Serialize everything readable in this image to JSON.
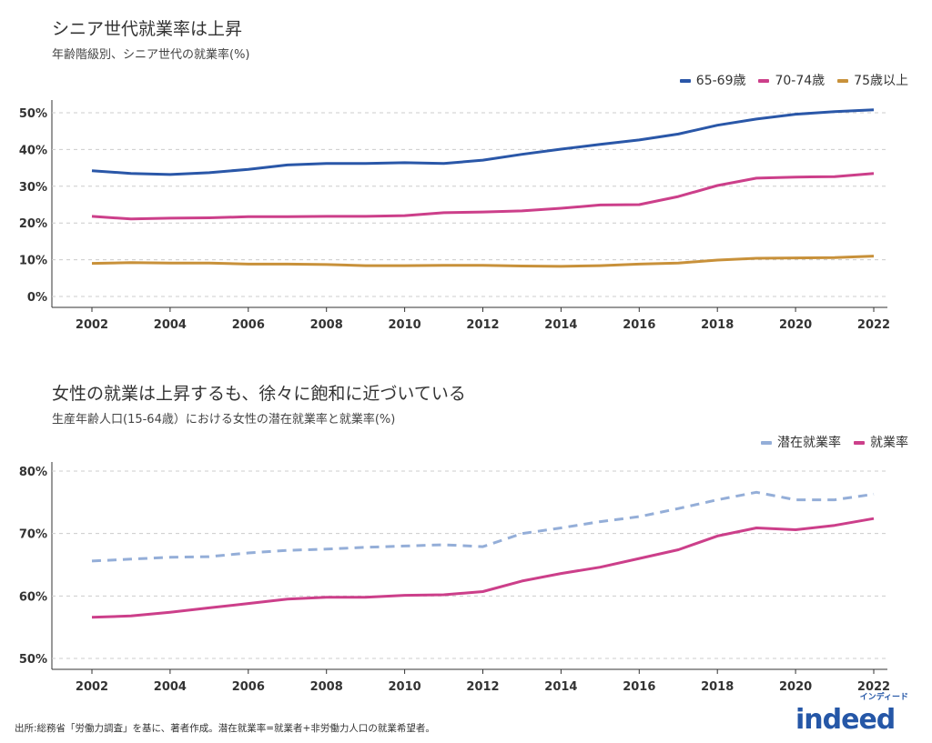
{
  "chart_data": [
    {
      "type": "line",
      "title": "シニア世代就業率は上昇",
      "subtitle": "年齢階級別、シニア世代の就業率(%)",
      "x": [
        2002,
        2003,
        2004,
        2005,
        2006,
        2007,
        2008,
        2009,
        2010,
        2011,
        2012,
        2013,
        2014,
        2015,
        2016,
        2017,
        2018,
        2019,
        2020,
        2021,
        2022
      ],
      "xticks": [
        "2002",
        "2004",
        "2006",
        "2008",
        "2010",
        "2012",
        "2014",
        "2016",
        "2018",
        "2020",
        "2022"
      ],
      "yticks": [
        "0%",
        "10%",
        "20%",
        "30%",
        "40%",
        "50%"
      ],
      "ylim": [
        0,
        50
      ],
      "grid": true,
      "legend_position": "top-right",
      "series": [
        {
          "name": "65-69歳",
          "color": "#2a57a8",
          "dashed": false,
          "values": [
            34.2,
            33.5,
            33.2,
            33.7,
            34.6,
            35.8,
            36.2,
            36.2,
            36.4,
            36.2,
            37.1,
            38.7,
            40.1,
            41.4,
            42.6,
            44.2,
            46.6,
            48.3,
            49.6,
            50.3,
            50.8
          ]
        },
        {
          "name": "70-74歳",
          "color": "#cc3f8a",
          "dashed": false,
          "values": [
            21.8,
            21.1,
            21.3,
            21.4,
            21.7,
            21.7,
            21.8,
            21.8,
            22.0,
            22.8,
            23.0,
            23.3,
            24.0,
            24.9,
            25.0,
            27.2,
            30.2,
            32.2,
            32.5,
            32.6,
            33.5
          ]
        },
        {
          "name": "75歳以上",
          "color": "#c8913a",
          "dashed": false,
          "values": [
            9.0,
            9.2,
            9.1,
            9.1,
            8.8,
            8.8,
            8.7,
            8.4,
            8.4,
            8.5,
            8.5,
            8.3,
            8.2,
            8.4,
            8.8,
            9.1,
            9.9,
            10.4,
            10.5,
            10.6,
            11.0
          ]
        }
      ]
    },
    {
      "type": "line",
      "title": "女性の就業は上昇するも、徐々に飽和に近づいている",
      "subtitle": "生産年齢人口(15-64歳）における女性の潜在就業率と就業率(%)",
      "x": [
        2002,
        2003,
        2004,
        2005,
        2006,
        2007,
        2008,
        2009,
        2010,
        2011,
        2012,
        2013,
        2014,
        2015,
        2016,
        2017,
        2018,
        2019,
        2020,
        2021,
        2022
      ],
      "xticks": [
        "2002",
        "2004",
        "2006",
        "2008",
        "2010",
        "2012",
        "2014",
        "2016",
        "2018",
        "2020",
        "2022"
      ],
      "yticks": [
        "50%",
        "60%",
        "70%",
        "80%"
      ],
      "ylim": [
        50,
        80
      ],
      "grid": true,
      "legend_position": "top-right",
      "series": [
        {
          "name": "潜在就業率",
          "color": "#94aed8",
          "dashed": true,
          "values": [
            65.6,
            65.9,
            66.2,
            66.3,
            66.9,
            67.3,
            67.5,
            67.8,
            68.0,
            68.2,
            67.9,
            70.0,
            70.9,
            71.9,
            72.7,
            74.0,
            75.4,
            76.6,
            75.4,
            75.4,
            76.3
          ]
        },
        {
          "name": "就業率",
          "color": "#cc3f8a",
          "dashed": false,
          "values": [
            56.6,
            56.8,
            57.4,
            58.1,
            58.8,
            59.5,
            59.8,
            59.8,
            60.1,
            60.2,
            60.7,
            62.4,
            63.6,
            64.6,
            66.0,
            67.4,
            69.6,
            70.9,
            70.6,
            71.3,
            72.4
          ]
        }
      ]
    }
  ],
  "footer": {
    "source": "出所:総務省「労働力調査」を基に、著者作成。潜在就業率=就業者+非労働力人口の就業希望者。",
    "logo_text": "indeed",
    "logo_kana": "インディード",
    "brand_color": "#2557a7"
  }
}
